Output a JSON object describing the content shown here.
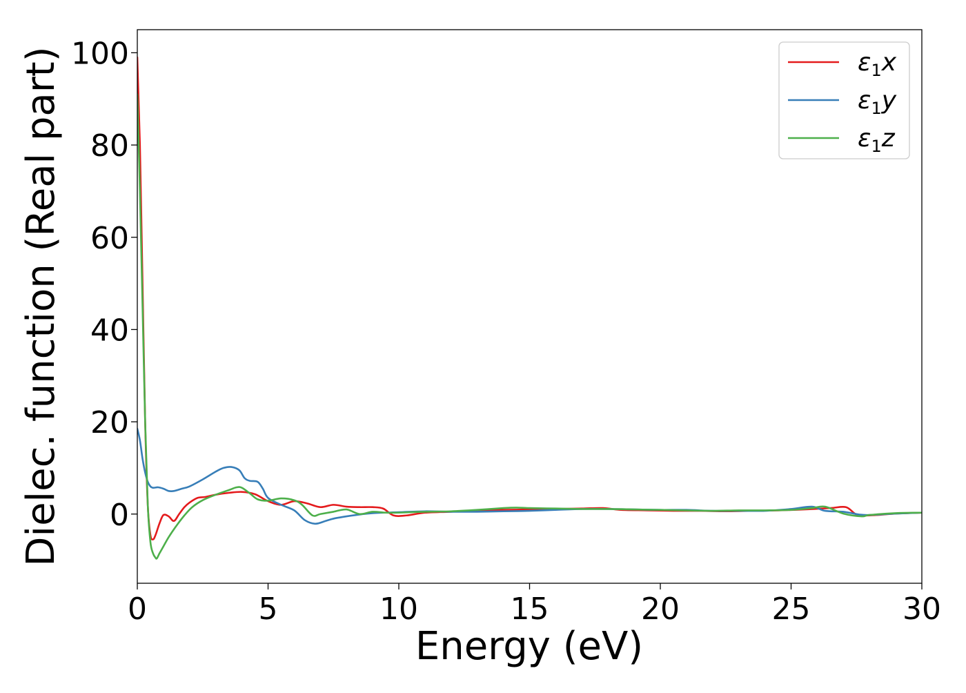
{
  "chart_data": {
    "type": "line",
    "title": "",
    "xlabel": "Energy (eV)",
    "ylabel": "Dielec. function (Real part)",
    "xlim": [
      0,
      30
    ],
    "ylim": [
      -15,
      105
    ],
    "xticks": [
      0,
      5,
      10,
      15,
      20,
      25,
      30
    ],
    "yticks": [
      0,
      20,
      40,
      60,
      80,
      100
    ],
    "grid": false,
    "legend_position": "top-right",
    "series": [
      {
        "name": "ε1x",
        "legend_base": "ε",
        "legend_sub": "1",
        "legend_var": "x",
        "color": "#e41a1c",
        "x": [
          0,
          0.1,
          0.2,
          0.3,
          0.4,
          0.5,
          0.6,
          0.7,
          0.85,
          1.0,
          1.2,
          1.4,
          1.6,
          1.8,
          2.0,
          2.3,
          2.6,
          3.0,
          3.5,
          4.0,
          4.5,
          5.0,
          5.5,
          6.0,
          6.5,
          7.0,
          7.5,
          8.0,
          8.5,
          9.0,
          9.4,
          9.8,
          10.3,
          11.0,
          12.0,
          13.0,
          14.0,
          15.0,
          16.0,
          17.0,
          17.8,
          18.5,
          19.5,
          20.5,
          21.5,
          22.5,
          23.5,
          24.5,
          25.5,
          26.5,
          27.1,
          27.5,
          28.0,
          29.0,
          30.0
        ],
        "y": [
          99,
          80,
          50,
          20,
          2,
          -4.5,
          -5.5,
          -4.5,
          -2,
          -0.2,
          -0.5,
          -1.5,
          0,
          1.5,
          2.5,
          3.5,
          3.7,
          4.2,
          4.6,
          4.8,
          4.3,
          2.8,
          2.0,
          2.8,
          2.3,
          1.5,
          2.0,
          1.6,
          1.5,
          1.5,
          1.2,
          -0.3,
          -0.3,
          0.3,
          0.5,
          0.8,
          0.9,
          1.0,
          1.1,
          1.2,
          1.3,
          0.9,
          0.8,
          0.7,
          0.7,
          0.6,
          0.7,
          0.8,
          1.0,
          1.3,
          1.5,
          -0.1,
          -0.3,
          0.1,
          0.3
        ]
      },
      {
        "name": "ε1y",
        "legend_base": "ε",
        "legend_sub": "1",
        "legend_var": "y",
        "color": "#377eb8",
        "x": [
          0,
          0.1,
          0.2,
          0.3,
          0.4,
          0.5,
          0.6,
          0.8,
          1.0,
          1.2,
          1.4,
          1.7,
          2.0,
          2.5,
          3.0,
          3.3,
          3.6,
          3.9,
          4.1,
          4.3,
          4.6,
          4.8,
          5.0,
          5.5,
          6.0,
          6.4,
          6.8,
          7.2,
          7.5,
          8.0,
          8.5,
          9.0,
          10.0,
          11.0,
          12.0,
          13.0,
          14.0,
          15.0,
          16.0,
          17.0,
          18.0,
          19.0,
          20.0,
          21.0,
          22.0,
          23.0,
          24.0,
          25.0,
          25.8,
          26.3,
          27.0,
          27.6,
          28.0,
          29.0,
          30.0
        ],
        "y": [
          18.5,
          16,
          12,
          9,
          7,
          6,
          5.7,
          5.8,
          5.5,
          5,
          5,
          5.5,
          6,
          7.5,
          9.2,
          10.0,
          10.2,
          9.5,
          7.8,
          7.2,
          7.0,
          5.5,
          3.5,
          2.0,
          0.8,
          -1.3,
          -2.1,
          -1.5,
          -1.0,
          -0.5,
          -0.1,
          0.2,
          0.4,
          0.6,
          0.5,
          0.5,
          0.6,
          0.7,
          0.9,
          1.1,
          1.1,
          1.0,
          0.9,
          0.9,
          0.7,
          0.7,
          0.7,
          1.1,
          1.6,
          0.7,
          0.5,
          -0.1,
          -0.2,
          0.1,
          0.3
        ]
      },
      {
        "name": "ε1z",
        "legend_base": "ε",
        "legend_sub": "1",
        "legend_var": "z",
        "color": "#4daf4a",
        "x": [
          0,
          0.1,
          0.2,
          0.3,
          0.4,
          0.5,
          0.6,
          0.7,
          0.75,
          0.85,
          1.0,
          1.2,
          1.5,
          1.8,
          2.1,
          2.5,
          3.0,
          3.5,
          3.8,
          4.0,
          4.3,
          4.6,
          5.0,
          5.5,
          6.0,
          6.3,
          6.7,
          7.0,
          7.5,
          8.0,
          8.5,
          9.0,
          9.5,
          10.0,
          11.0,
          12.0,
          13.0,
          14.0,
          14.5,
          15.0,
          16.0,
          17.0,
          18.0,
          19.0,
          20.0,
          21.0,
          22.0,
          23.0,
          24.0,
          25.0,
          25.8,
          26.3,
          27.0,
          27.7,
          28.0,
          29.0,
          30.0
        ],
        "y": [
          91,
          70,
          45,
          20,
          2,
          -6,
          -8.5,
          -9.5,
          -9.6,
          -8.5,
          -7,
          -5,
          -2.5,
          -0.3,
          1.5,
          3.0,
          4.2,
          5.2,
          5.8,
          5.7,
          4.5,
          3.2,
          2.9,
          3.4,
          3.0,
          2.0,
          -0.3,
          0.0,
          0.5,
          1.0,
          0.0,
          0.5,
          0.3,
          0.3,
          0.5,
          0.6,
          0.9,
          1.3,
          1.4,
          1.3,
          1.2,
          1.1,
          1.1,
          1.0,
          0.9,
          0.8,
          0.7,
          0.8,
          0.8,
          0.9,
          1.3,
          1.6,
          0.1,
          -0.5,
          -0.2,
          0.2,
          0.3
        ]
      }
    ]
  }
}
